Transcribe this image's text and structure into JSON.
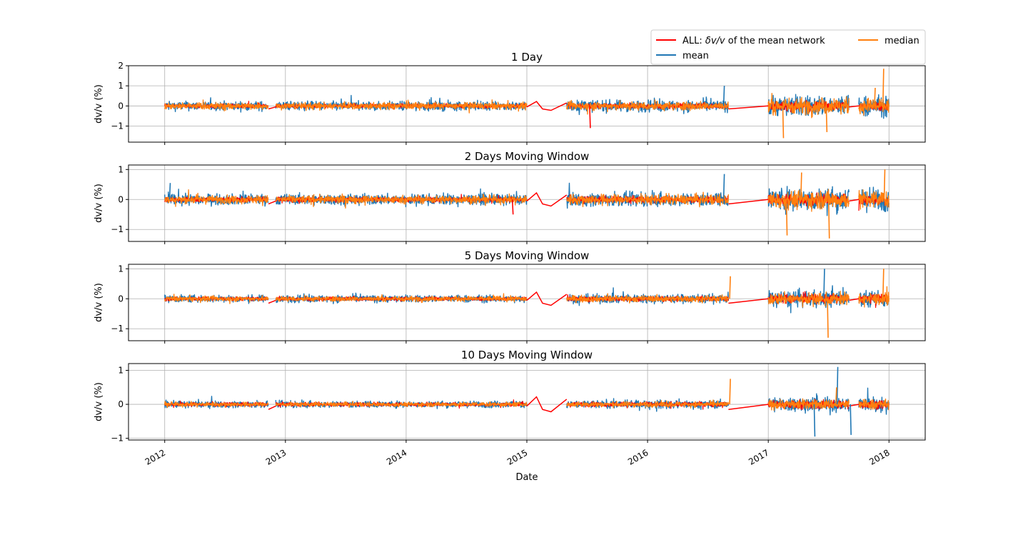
{
  "chart_data": [
    {
      "type": "line",
      "title": "1 Day",
      "ylabel": "dv/v (%)",
      "ylim": [
        -1.8,
        2.0
      ],
      "yticks": [
        -1,
        0,
        1,
        2
      ],
      "ytick_labels": [
        "−1",
        "0",
        "1",
        "2"
      ],
      "amplitude": {
        "mean": 0.28,
        "median": 0.22,
        "all": 0.12
      },
      "spikes": [
        {
          "series": "ALL: δv/v of the mean network",
          "x": 2015.52,
          "y": -1.1
        },
        {
          "series": "mean",
          "x": 2016.63,
          "y": 1.0
        },
        {
          "series": "median",
          "x": 2017.12,
          "y": -1.6
        },
        {
          "series": "median",
          "x": 2017.48,
          "y": -1.3
        },
        {
          "series": "median",
          "x": 2017.95,
          "y": 1.85
        },
        {
          "series": "median",
          "x": 2017.88,
          "y": 0.9
        }
      ]
    },
    {
      "type": "line",
      "title": "2 Days Moving Window",
      "ylabel": "dv/v (%)",
      "ylim": [
        -1.4,
        1.15
      ],
      "yticks": [
        -1,
        0,
        1
      ],
      "ytick_labels": [
        "−1",
        "0",
        "1"
      ],
      "amplitude": {
        "mean": 0.22,
        "median": 0.17,
        "all": 0.1
      },
      "spikes": [
        {
          "series": "mean",
          "x": 2012.04,
          "y": 0.55
        },
        {
          "series": "ALL: δv/v of the mean network",
          "x": 2014.88,
          "y": -0.5
        },
        {
          "series": "mean",
          "x": 2016.63,
          "y": 0.85
        },
        {
          "series": "median",
          "x": 2017.15,
          "y": -1.2
        },
        {
          "series": "median",
          "x": 2017.5,
          "y": -1.3
        },
        {
          "series": "median",
          "x": 2017.27,
          "y": 0.9
        },
        {
          "series": "median",
          "x": 2017.96,
          "y": 1.0
        }
      ]
    },
    {
      "type": "line",
      "title": "5 Days Moving Window",
      "ylabel": "dv/v (%)",
      "ylim": [
        -1.4,
        1.15
      ],
      "yticks": [
        -1,
        0,
        1
      ],
      "ytick_labels": [
        "−1",
        "0",
        "1"
      ],
      "amplitude": {
        "mean": 0.15,
        "median": 0.11,
        "all": 0.08
      },
      "spikes": [
        {
          "series": "median",
          "x": 2016.68,
          "y": 0.75
        },
        {
          "series": "median",
          "x": 2017.49,
          "y": -1.3
        },
        {
          "series": "mean",
          "x": 2017.46,
          "y": 1.0
        },
        {
          "series": "median",
          "x": 2017.95,
          "y": 1.0
        }
      ]
    },
    {
      "type": "line",
      "title": "10 Days Moving Window",
      "ylabel": "dv/v (%)",
      "ylim": [
        -1.05,
        1.2
      ],
      "yticks": [
        -1,
        0,
        1
      ],
      "ytick_labels": [
        "−1",
        "0",
        "1"
      ],
      "amplitude": {
        "mean": 0.12,
        "median": 0.08,
        "all": 0.07
      },
      "spikes": [
        {
          "series": "median",
          "x": 2016.68,
          "y": 0.75
        },
        {
          "series": "mean",
          "x": 2017.57,
          "y": 1.1
        },
        {
          "series": "mean",
          "x": 2017.38,
          "y": -0.95
        },
        {
          "series": "mean",
          "x": 2017.68,
          "y": -0.9
        },
        {
          "series": "median",
          "x": 2017.56,
          "y": 0.5
        }
      ]
    }
  ],
  "shared": {
    "xlabel": "Date",
    "xlim": [
      2011.7,
      2018.3
    ],
    "xticks": [
      2012,
      2013,
      2014,
      2015,
      2016,
      2017,
      2018
    ],
    "xtick_labels": [
      "2012",
      "2013",
      "2014",
      "2015",
      "2016",
      "2017",
      "2018"
    ],
    "grid": true,
    "legend_placement": "top-right",
    "data_segments": [
      {
        "start": 2012.0,
        "end": 2012.86
      },
      {
        "start": 2012.92,
        "end": 2015.0
      },
      {
        "start": 2015.33,
        "end": 2016.67
      },
      {
        "start": 2017.0,
        "end": 2017.67
      },
      {
        "start": 2017.75,
        "end": 2018.0
      }
    ],
    "all_connectors": [
      {
        "x": [
          2012.86,
          2012.92
        ],
        "y": [
          -0.15,
          -0.05
        ]
      },
      {
        "x": [
          2015.0,
          2015.08,
          2015.13,
          2015.2,
          2015.33
        ],
        "y": [
          -0.05,
          0.22,
          -0.15,
          -0.22,
          0.15
        ]
      },
      {
        "x": [
          2016.67,
          2017.0
        ],
        "y": [
          -0.15,
          0.0
        ]
      },
      {
        "x": [
          2017.67,
          2017.75
        ],
        "y": [
          -0.05,
          0.0
        ]
      }
    ]
  },
  "series": [
    {
      "name": "ALL: δv/v of the mean network",
      "color": "#ff0000"
    },
    {
      "name": "mean",
      "color": "#1f77b4"
    },
    {
      "name": "median",
      "color": "#ff7f0e"
    }
  ]
}
